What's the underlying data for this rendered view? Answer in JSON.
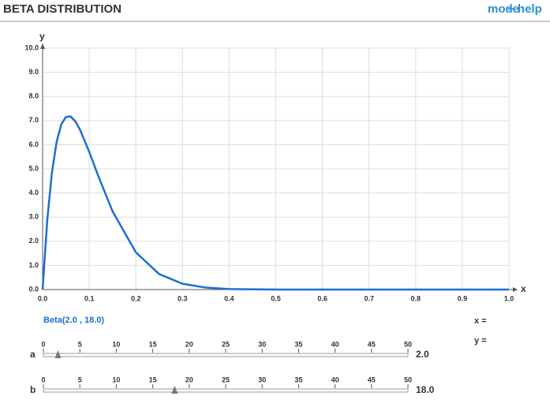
{
  "header": {
    "title": "BETA DISTRIBUTION",
    "mode": "mode",
    "help": "+ help"
  },
  "chart_data": {
    "type": "line",
    "x_label": "x",
    "y_label": "y",
    "x": [
      0,
      0.01,
      0.02,
      0.03,
      0.04,
      0.05,
      0.06,
      0.07,
      0.08,
      0.1,
      0.12,
      0.15,
      0.2,
      0.25,
      0.3,
      0.35,
      0.4,
      0.5,
      0.6,
      0.7,
      0.8,
      0.9,
      1.0
    ],
    "values": [
      0,
      2.88,
      4.85,
      6.11,
      6.84,
      7.15,
      7.17,
      6.97,
      6.63,
      5.7,
      4.67,
      3.24,
      1.54,
      0.64,
      0.24,
      0.08,
      0.02,
      0,
      0,
      0,
      0,
      0,
      0
    ],
    "color": "#1a6fd1",
    "xlim": [
      0,
      1.0
    ],
    "ylim": [
      0,
      10.0
    ],
    "xticks": [
      {
        "value": 0,
        "label": "0.0"
      },
      0.1,
      0.2,
      0.3,
      0.4,
      0.5,
      0.6,
      0.7,
      0.8,
      0.9,
      {
        "value": 1,
        "label": "1.0"
      }
    ],
    "yticks": [
      {
        "value": 0,
        "label": "0.0"
      },
      {
        "value": 1,
        "label": "1.0"
      },
      {
        "value": 2,
        "label": "2.0"
      },
      {
        "value": 3,
        "label": "3.0"
      },
      {
        "value": 4,
        "label": "4.0"
      },
      {
        "value": 5,
        "label": "5.0"
      },
      {
        "value": 6,
        "label": "6.0"
      },
      {
        "value": 7,
        "label": "7.0"
      },
      {
        "value": 8,
        "label": "8.0"
      },
      {
        "value": 9,
        "label": "9.0"
      },
      {
        "value": 10,
        "label": "10.0"
      }
    ],
    "grid": true
  },
  "distribution_label": "Beta(2.0 , 18.0)",
  "readout": {
    "x": "x =",
    "y": "y ="
  },
  "sliders": [
    {
      "name": "a",
      "range": [
        0,
        50
      ],
      "ticks": [
        0,
        5,
        10,
        15,
        20,
        25,
        30,
        35,
        40,
        45,
        50
      ],
      "value": 2,
      "value_label": "2.0"
    },
    {
      "name": "b",
      "range": [
        0,
        50
      ],
      "ticks": [
        0,
        5,
        10,
        15,
        20,
        25,
        30,
        35,
        40,
        45,
        50
      ],
      "value": 18,
      "value_label": "18.0"
    }
  ]
}
